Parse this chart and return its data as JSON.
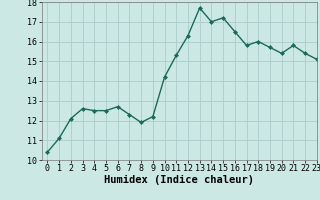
{
  "x": [
    0,
    1,
    2,
    3,
    4,
    5,
    6,
    7,
    8,
    9,
    10,
    11,
    12,
    13,
    14,
    15,
    16,
    17,
    18,
    19,
    20,
    21,
    22,
    23
  ],
  "y": [
    10.4,
    11.1,
    12.1,
    12.6,
    12.5,
    12.5,
    12.7,
    12.3,
    11.9,
    12.2,
    14.2,
    15.3,
    16.3,
    17.7,
    17.0,
    17.2,
    16.5,
    15.8,
    16.0,
    15.7,
    15.4,
    15.8,
    15.4,
    15.1
  ],
  "line_color": "#1a6b5a",
  "marker": "D",
  "marker_size": 2.0,
  "bg_color": "#cce8e4",
  "grid_color": "#aacccc",
  "xlabel": "Humidex (Indice chaleur)",
  "ylim": [
    10,
    18
  ],
  "xlim": [
    -0.5,
    23
  ],
  "yticks": [
    10,
    11,
    12,
    13,
    14,
    15,
    16,
    17,
    18
  ],
  "xticks": [
    0,
    1,
    2,
    3,
    4,
    5,
    6,
    7,
    8,
    9,
    10,
    11,
    12,
    13,
    14,
    15,
    16,
    17,
    18,
    19,
    20,
    21,
    22,
    23
  ],
  "tick_fontsize": 6.0,
  "xlabel_fontsize": 7.5,
  "linewidth": 1.0
}
